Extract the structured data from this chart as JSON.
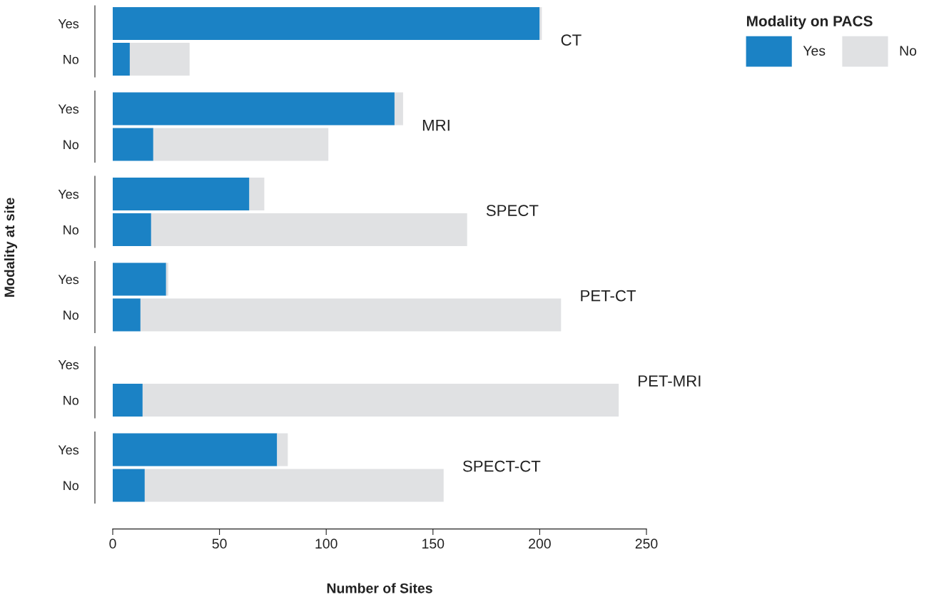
{
  "chart_data": [
    {
      "type": "bar",
      "orientation": "horizontal",
      "stacked": true,
      "categories": [
        "Yes",
        "No"
      ],
      "series": [
        {
          "name": "Yes",
          "color": "#1b82c5",
          "values": [
            200,
            8
          ]
        },
        {
          "name": "No",
          "color": "#e0e1e3",
          "values": [
            1,
            28
          ]
        }
      ],
      "xlim": [
        0,
        250
      ],
      "tick_labels": "y",
      "grid": false,
      "legend": "top right",
      "legend_title": "Modality on PACS",
      "annotations": [
        "CT"
      ]
    },
    {
      "type": "bar",
      "orientation": "horizontal",
      "stacked": true,
      "categories": [
        "Yes",
        "No"
      ],
      "series": [
        {
          "color": "#1b82c5",
          "values": [
            132,
            19
          ]
        },
        {
          "color": "#e0e1e3",
          "values": [
            4,
            82
          ]
        }
      ],
      "xlim": [
        0,
        250
      ],
      "tick_labels": "y",
      "grid": false,
      "annotations": [
        "MRI"
      ]
    },
    {
      "type": "bar",
      "orientation": "horizontal",
      "stacked": true,
      "categories": [
        "Yes",
        "No"
      ],
      "series": [
        {
          "color": "#1b82c5",
          "values": [
            64,
            18
          ]
        },
        {
          "color": "#e0e1e3",
          "values": [
            7,
            148
          ]
        }
      ],
      "xlim": [
        0,
        250
      ],
      "tick_labels": "y",
      "grid": false,
      "ylabel": "Modality at site",
      "annotations": [
        "SPECT"
      ]
    },
    {
      "type": "bar",
      "orientation": "horizontal",
      "stacked": true,
      "categories": [
        "Yes",
        "No"
      ],
      "series": [
        {
          "color": "#1b82c5",
          "values": [
            25,
            13
          ]
        },
        {
          "color": "#e0e1e3",
          "values": [
            1,
            197
          ]
        }
      ],
      "xlim": [
        0,
        250
      ],
      "tick_labels": "y",
      "grid": false,
      "annotations": [
        "PET-CT"
      ]
    },
    {
      "type": "bar",
      "orientation": "horizontal",
      "stacked": true,
      "categories": [
        "Yes",
        "No"
      ],
      "series": [
        {
          "color": "#1b82c5",
          "values": [
            0,
            14
          ]
        },
        {
          "color": "#e0e1e3",
          "values": [
            0,
            223
          ]
        }
      ],
      "xlim": [
        0,
        250
      ],
      "tick_labels": "y",
      "grid": false,
      "annotations": [
        "PET-MRI"
      ]
    },
    {
      "type": "bar",
      "orientation": "horizontal",
      "stacked": true,
      "categories": [
        "Yes",
        "No"
      ],
      "series": [
        {
          "color": "#1b82c5",
          "values": [
            77,
            15
          ]
        },
        {
          "color": "#e0e1e3",
          "values": [
            5,
            140
          ]
        }
      ],
      "xlim": [
        0,
        250
      ],
      "xticks": [
        0,
        50,
        100,
        150,
        200,
        250
      ],
      "grid": false,
      "xlabel": "Number of Sites",
      "annotations": [
        "SPECT-CT"
      ]
    }
  ]
}
